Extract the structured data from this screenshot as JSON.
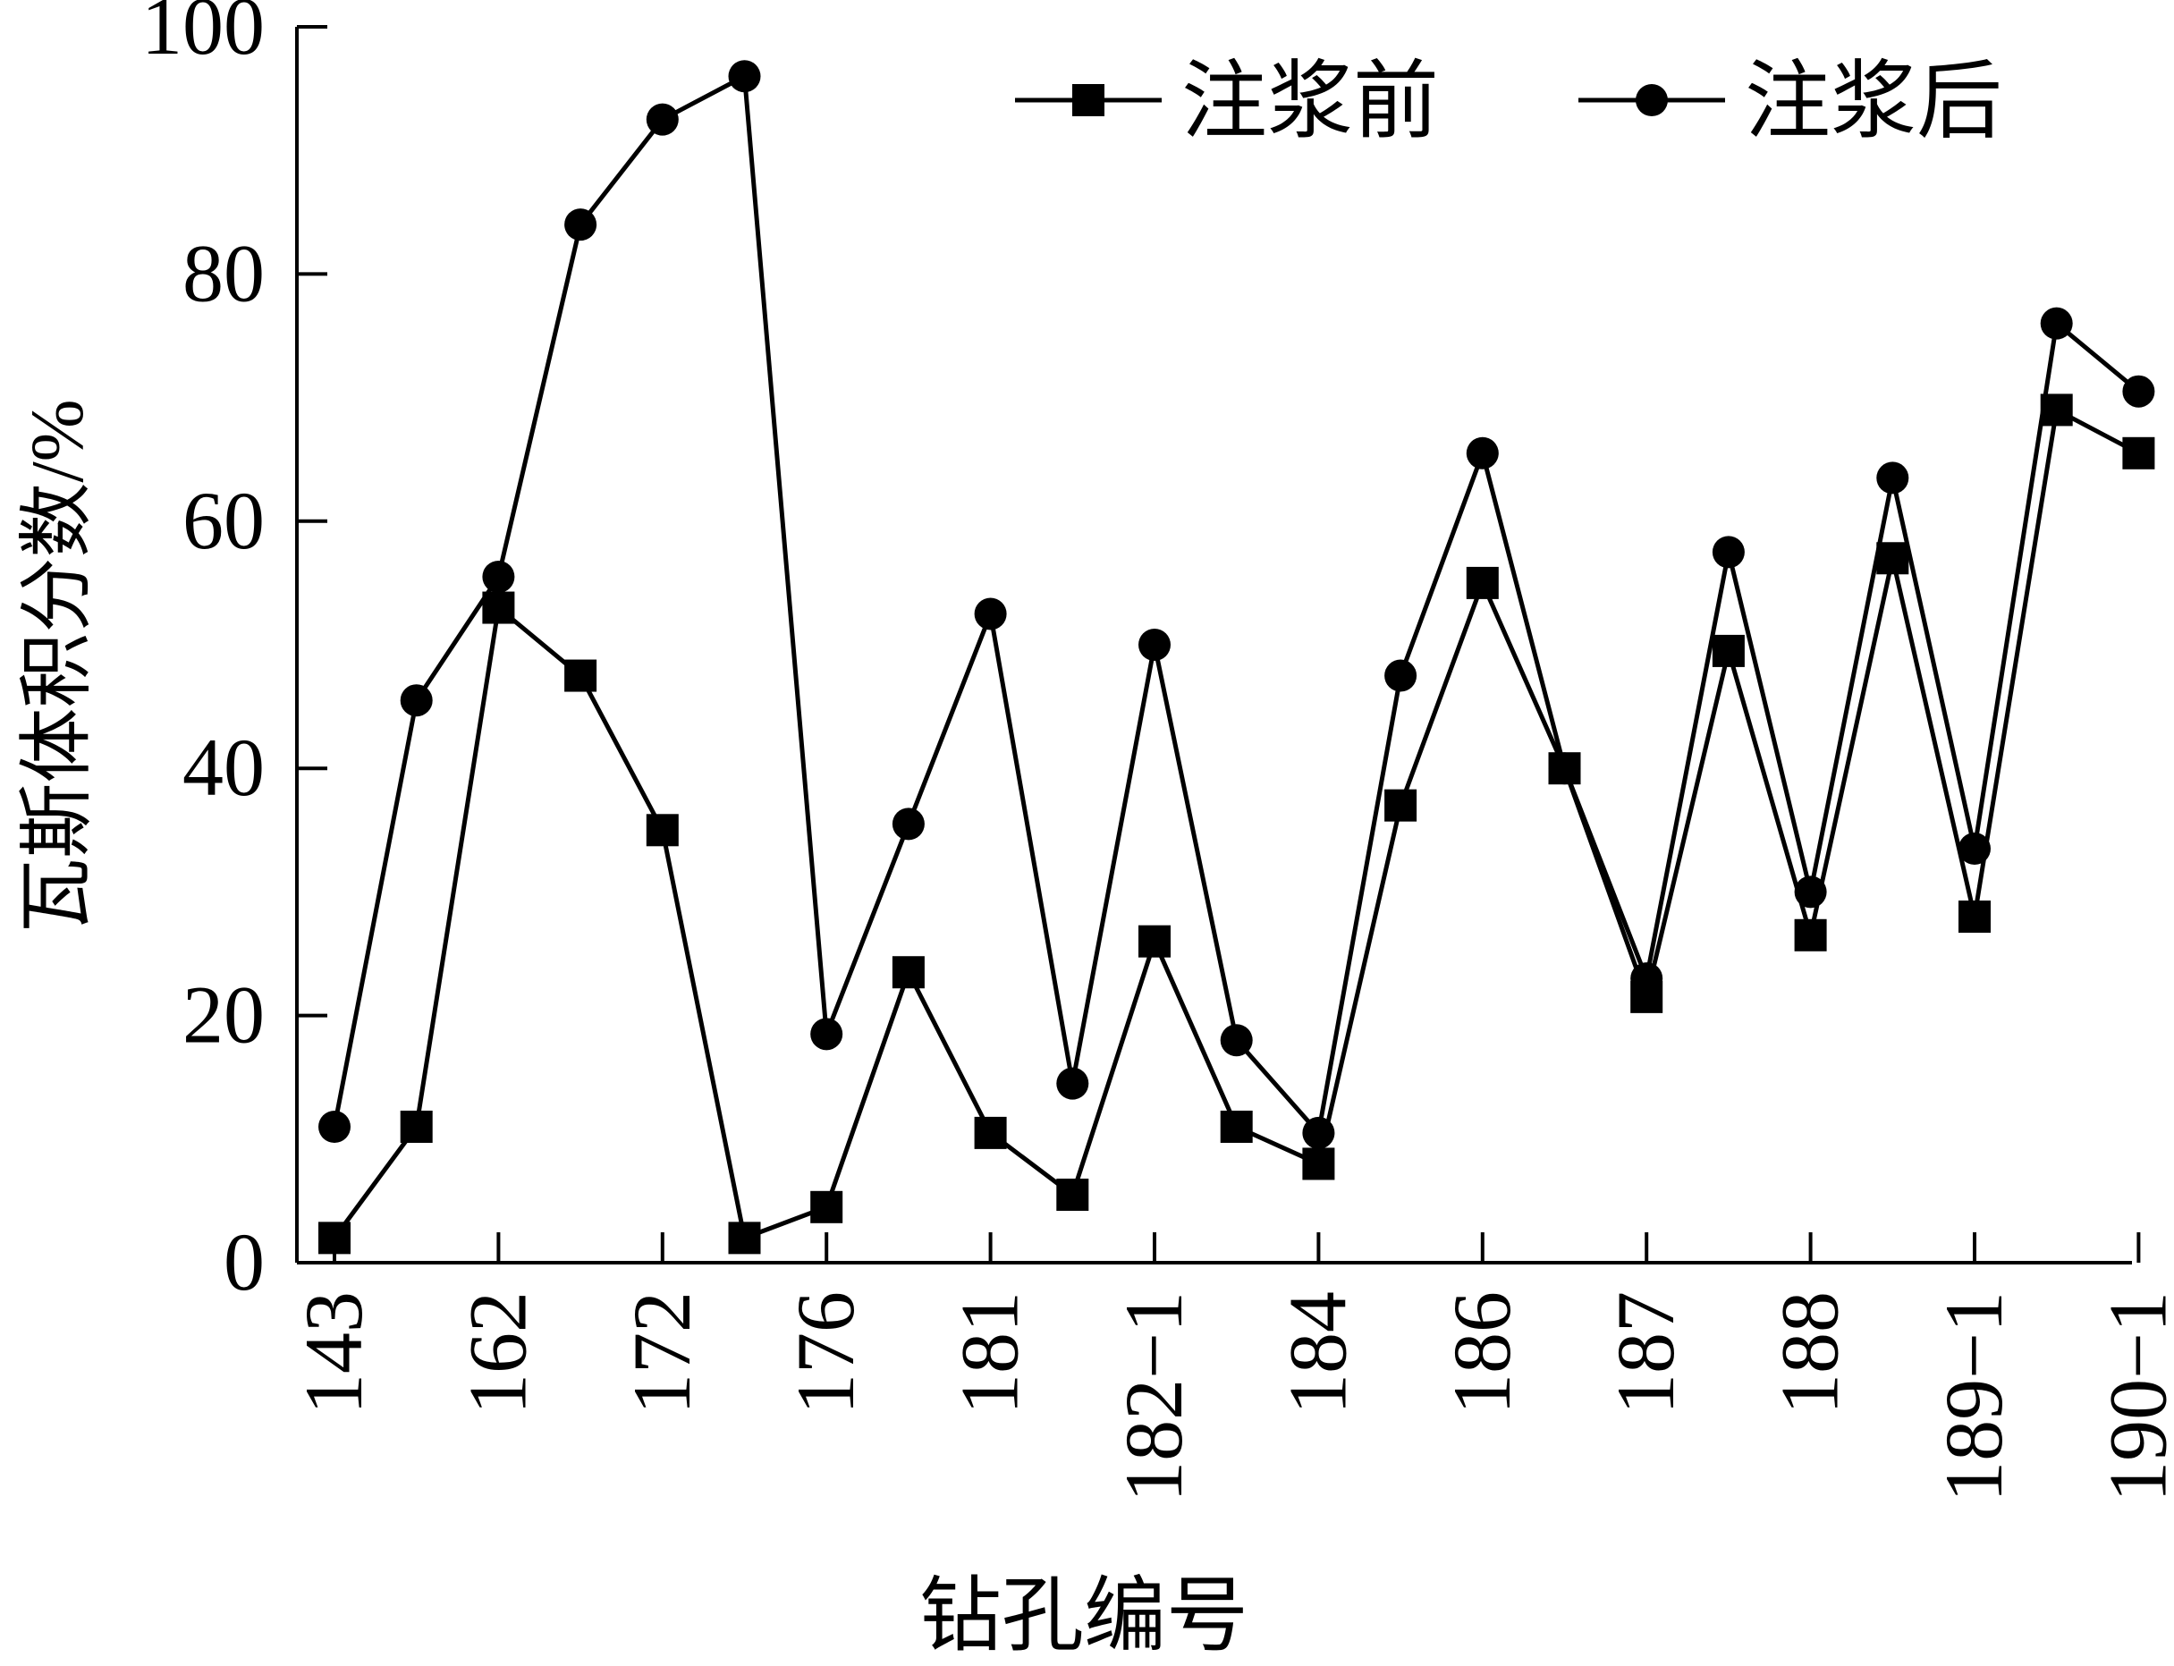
{
  "chart_data": {
    "type": "line",
    "xlabel": "钻孔编号",
    "ylabel": "瓦斯体积分数/%",
    "ylim": [
      0,
      100
    ],
    "yticks": [
      0,
      20,
      40,
      60,
      80,
      100
    ],
    "x_count": 23,
    "x_tick_labels": [
      {
        "index": 0,
        "label": "143"
      },
      {
        "index": 2,
        "label": "162"
      },
      {
        "index": 4,
        "label": "172"
      },
      {
        "index": 6,
        "label": "176"
      },
      {
        "index": 8,
        "label": "181"
      },
      {
        "index": 10,
        "label": "182−1"
      },
      {
        "index": 12,
        "label": "184"
      },
      {
        "index": 14,
        "label": "186"
      },
      {
        "index": 16,
        "label": "187"
      },
      {
        "index": 18,
        "label": "188"
      },
      {
        "index": 20,
        "label": "189−1"
      },
      {
        "index": 22,
        "label": "190−1"
      }
    ],
    "series": [
      {
        "name": "注浆前",
        "marker": "square",
        "values": [
          2,
          11,
          53,
          47.5,
          35,
          2,
          4.5,
          23.5,
          10.5,
          5.5,
          26,
          11,
          8,
          37,
          55,
          40,
          21.5,
          49.5,
          26.5,
          57,
          28,
          69,
          65.5
        ]
      },
      {
        "name": "注浆后",
        "marker": "circle",
        "values": [
          11,
          45.5,
          55.5,
          84,
          92.5,
          96,
          18.5,
          35.5,
          52.5,
          14.5,
          50,
          18,
          10.5,
          47.5,
          65.5,
          40,
          23,
          57.5,
          30,
          63.5,
          33.5,
          76,
          70.5
        ]
      }
    ],
    "legend_position": "top-right",
    "grid": false,
    "color": "#000000"
  }
}
